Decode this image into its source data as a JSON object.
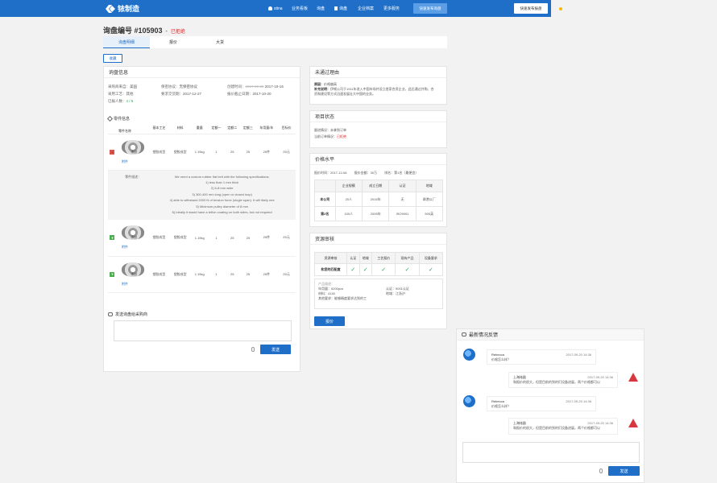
{
  "brand": {
    "name": "铱制造"
  },
  "nav": {
    "user": "stina",
    "items": [
      "业务看板",
      "询盘",
      "询盘",
      "企业档案",
      "更多服务"
    ],
    "quick_publish": "快速发布询盘",
    "quick_quote": "快速发布报盘"
  },
  "page": {
    "title": "询盘编号 #105903",
    "dash": "-",
    "status": "已拒绝"
  },
  "tabs": [
    "询盘明细",
    "报价",
    "大货"
  ],
  "actions": {
    "collect": "收藏"
  },
  "inquiry": {
    "header": "询盘信息",
    "country_k": "采购商来自：",
    "country_v": "美国",
    "craft_k": "采用工艺：",
    "craft_v": "其他",
    "quoted_k": "已报人数：",
    "quoted_v": "4 / 5",
    "nda_k": "保密协议：",
    "nda_v": "无保密协议",
    "delivery_k": "要求交货期：",
    "delivery_v": "2017-12-27",
    "created_k": "创建时间：",
    "created_old": "2017-09-20",
    "created_v": "2017-10-16",
    "deadline_k": "报价截止日期：",
    "deadline_v": "2017-10-20"
  },
  "parts": {
    "header": "零件信息",
    "columns": [
      "零件名称",
      "基本工艺",
      "材料",
      "重量",
      "定额一",
      "定额二",
      "定额三",
      "年用量/年",
      "目标价"
    ],
    "rows": [
      {
        "name": "橡胶",
        "process": "塑胶成型",
        "material": "塑胶成型",
        "weight": "1.19kg",
        "q1": "1",
        "q2": "25",
        "q3": "25",
        "annual": "25件",
        "price": "25元",
        "link": "附件"
      },
      {
        "name": "橡胶",
        "process": "塑胶成型",
        "material": "塑胶成型",
        "weight": "1.19kg",
        "q1": "1",
        "q2": "25",
        "q3": "25",
        "annual": "25件",
        "price": "25元",
        "link": "附件"
      },
      {
        "name": "橡胶",
        "process": "塑胶成型",
        "material": "塑胶成型",
        "weight": "1.19kg",
        "q1": "1",
        "q2": "25",
        "q3": "25",
        "annual": "25件",
        "price": "25元",
        "link": "附件"
      }
    ],
    "desc_label": "零件描述：",
    "desc_lines": [
      "We need a custom rubber flat belt with the following specifications:",
      "1) less than 1 mm thick",
      "2) 6-8 mm wide",
      "3) 300-400 mm long (open or closed loop)",
      "4) able to withstand 2000 N of tension force (single span). It will likely nee",
      "5) Minimum pulley diameter of 8 mm",
      "6) Ideally it would have a teflon coating on both sides, but not required"
    ]
  },
  "send": {
    "header": "发送询盘给采购商",
    "button": "发送"
  },
  "reject": {
    "header": "未通过理由",
    "reason_k": "原因：",
    "reason_v": "价格偏高",
    "detail_k": "补充说明：",
    "detail_line1": "伊顿公司于1911年进入中国市场并设立首家合资企业，此后通过并购、合",
    "detail_line2": "资和建设等方式迅速发展壮大中国的业务。"
  },
  "project": {
    "header": "项目状态",
    "k1": "跟进情况：",
    "v1": "未拿到订单",
    "k2": "当前订单情况：",
    "v2": "已拒绝"
  },
  "price": {
    "header": "价格水平",
    "quote_time_k": "报价时间：",
    "quote_time_v": "2017-12-08",
    "amount_k": "报价金额：",
    "amount_v": "30万",
    "rank_k": "排名：",
    "rank_v": "第1名（最便宜）",
    "columns": [
      "",
      "企业规模",
      "成立日期",
      "认证",
      "地域"
    ],
    "rows": [
      [
        "本公司",
        "20人",
        "2016年",
        "无",
        "珠港以厂"
      ],
      [
        "第2名",
        "100人",
        "2005年",
        "ISO9001",
        "500英"
      ]
    ]
  },
  "resource": {
    "header": "资源审核",
    "columns": [
      "资源审核",
      "认证",
      "地域",
      "工艺报价",
      "现有产品",
      "设备要求"
    ],
    "row_label": "和您的匹配度",
    "product_desc_k": "产品描述：",
    "year_k": "年用量：",
    "year_v": "5200pcs",
    "material_k": "材料：",
    "material_v": "4140",
    "other_k": "其他要求：",
    "other_v": "能够精度要求达到的工",
    "cert_k": "认证：",
    "cert_v": "9001认证",
    "region_k": "地域：",
    "region_v": "江浙沪",
    "quote_button": "报价"
  },
  "feedback": {
    "header": "最新情况反馈",
    "messages": [
      {
        "who": "Rebecca",
        "time": "2017-09-20  14:36",
        "text": "价格怎么样？"
      },
      {
        "who": "上海铱励",
        "time": "2017-09-20  14:36",
        "text": "和报价的很大，但是目前的到的们设备进展，两个价格都可以"
      },
      {
        "who": "Rebecca",
        "time": "2017-09-20  14:36",
        "text": "价格怎么样？"
      },
      {
        "who": "上海铱励",
        "time": "2017-09-20  14:36",
        "text": "和报价的很大，但是目前的到的们设备进展，两个价格都可以"
      }
    ],
    "send_button": "发送"
  }
}
